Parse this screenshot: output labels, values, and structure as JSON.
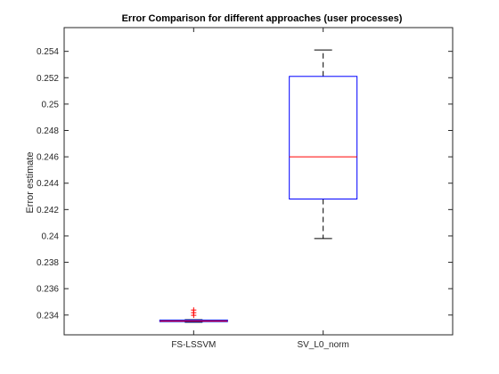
{
  "chart_data": {
    "type": "box",
    "title": "Error Comparison for different approaches (user processes)",
    "xlabel": "",
    "ylabel": "Error estimate",
    "ylim": [
      0.2325,
      0.2558
    ],
    "yticks": [
      0.234,
      0.236,
      0.238,
      0.24,
      0.242,
      0.244,
      0.246,
      0.248,
      0.25,
      0.252,
      0.254
    ],
    "ytick_labels": [
      "0.234",
      "0.236",
      "0.238",
      "0.24",
      "0.242",
      "0.244",
      "0.246",
      "0.248",
      "0.25",
      "0.252",
      "0.254"
    ],
    "categories": [
      "FS-LSSVM",
      "SV_L0_norm"
    ],
    "boxes": [
      {
        "label": "FS-LSSVM",
        "whisker_low": 0.23345,
        "q1": 0.2335,
        "median": 0.23355,
        "q3": 0.23362,
        "whisker_high": 0.23365,
        "outliers": [
          0.23398,
          0.23418,
          0.23438
        ]
      },
      {
        "label": "SV_L0_norm",
        "whisker_low": 0.2398,
        "q1": 0.2428,
        "median": 0.246,
        "q3": 0.2521,
        "whisker_high": 0.2541,
        "outliers": []
      }
    ],
    "colors": {
      "box": "#0000ff",
      "median": "#ff0000",
      "whisker": "#000000",
      "outlier": "#ff0000",
      "axes": "#262626"
    },
    "grid": false
  }
}
